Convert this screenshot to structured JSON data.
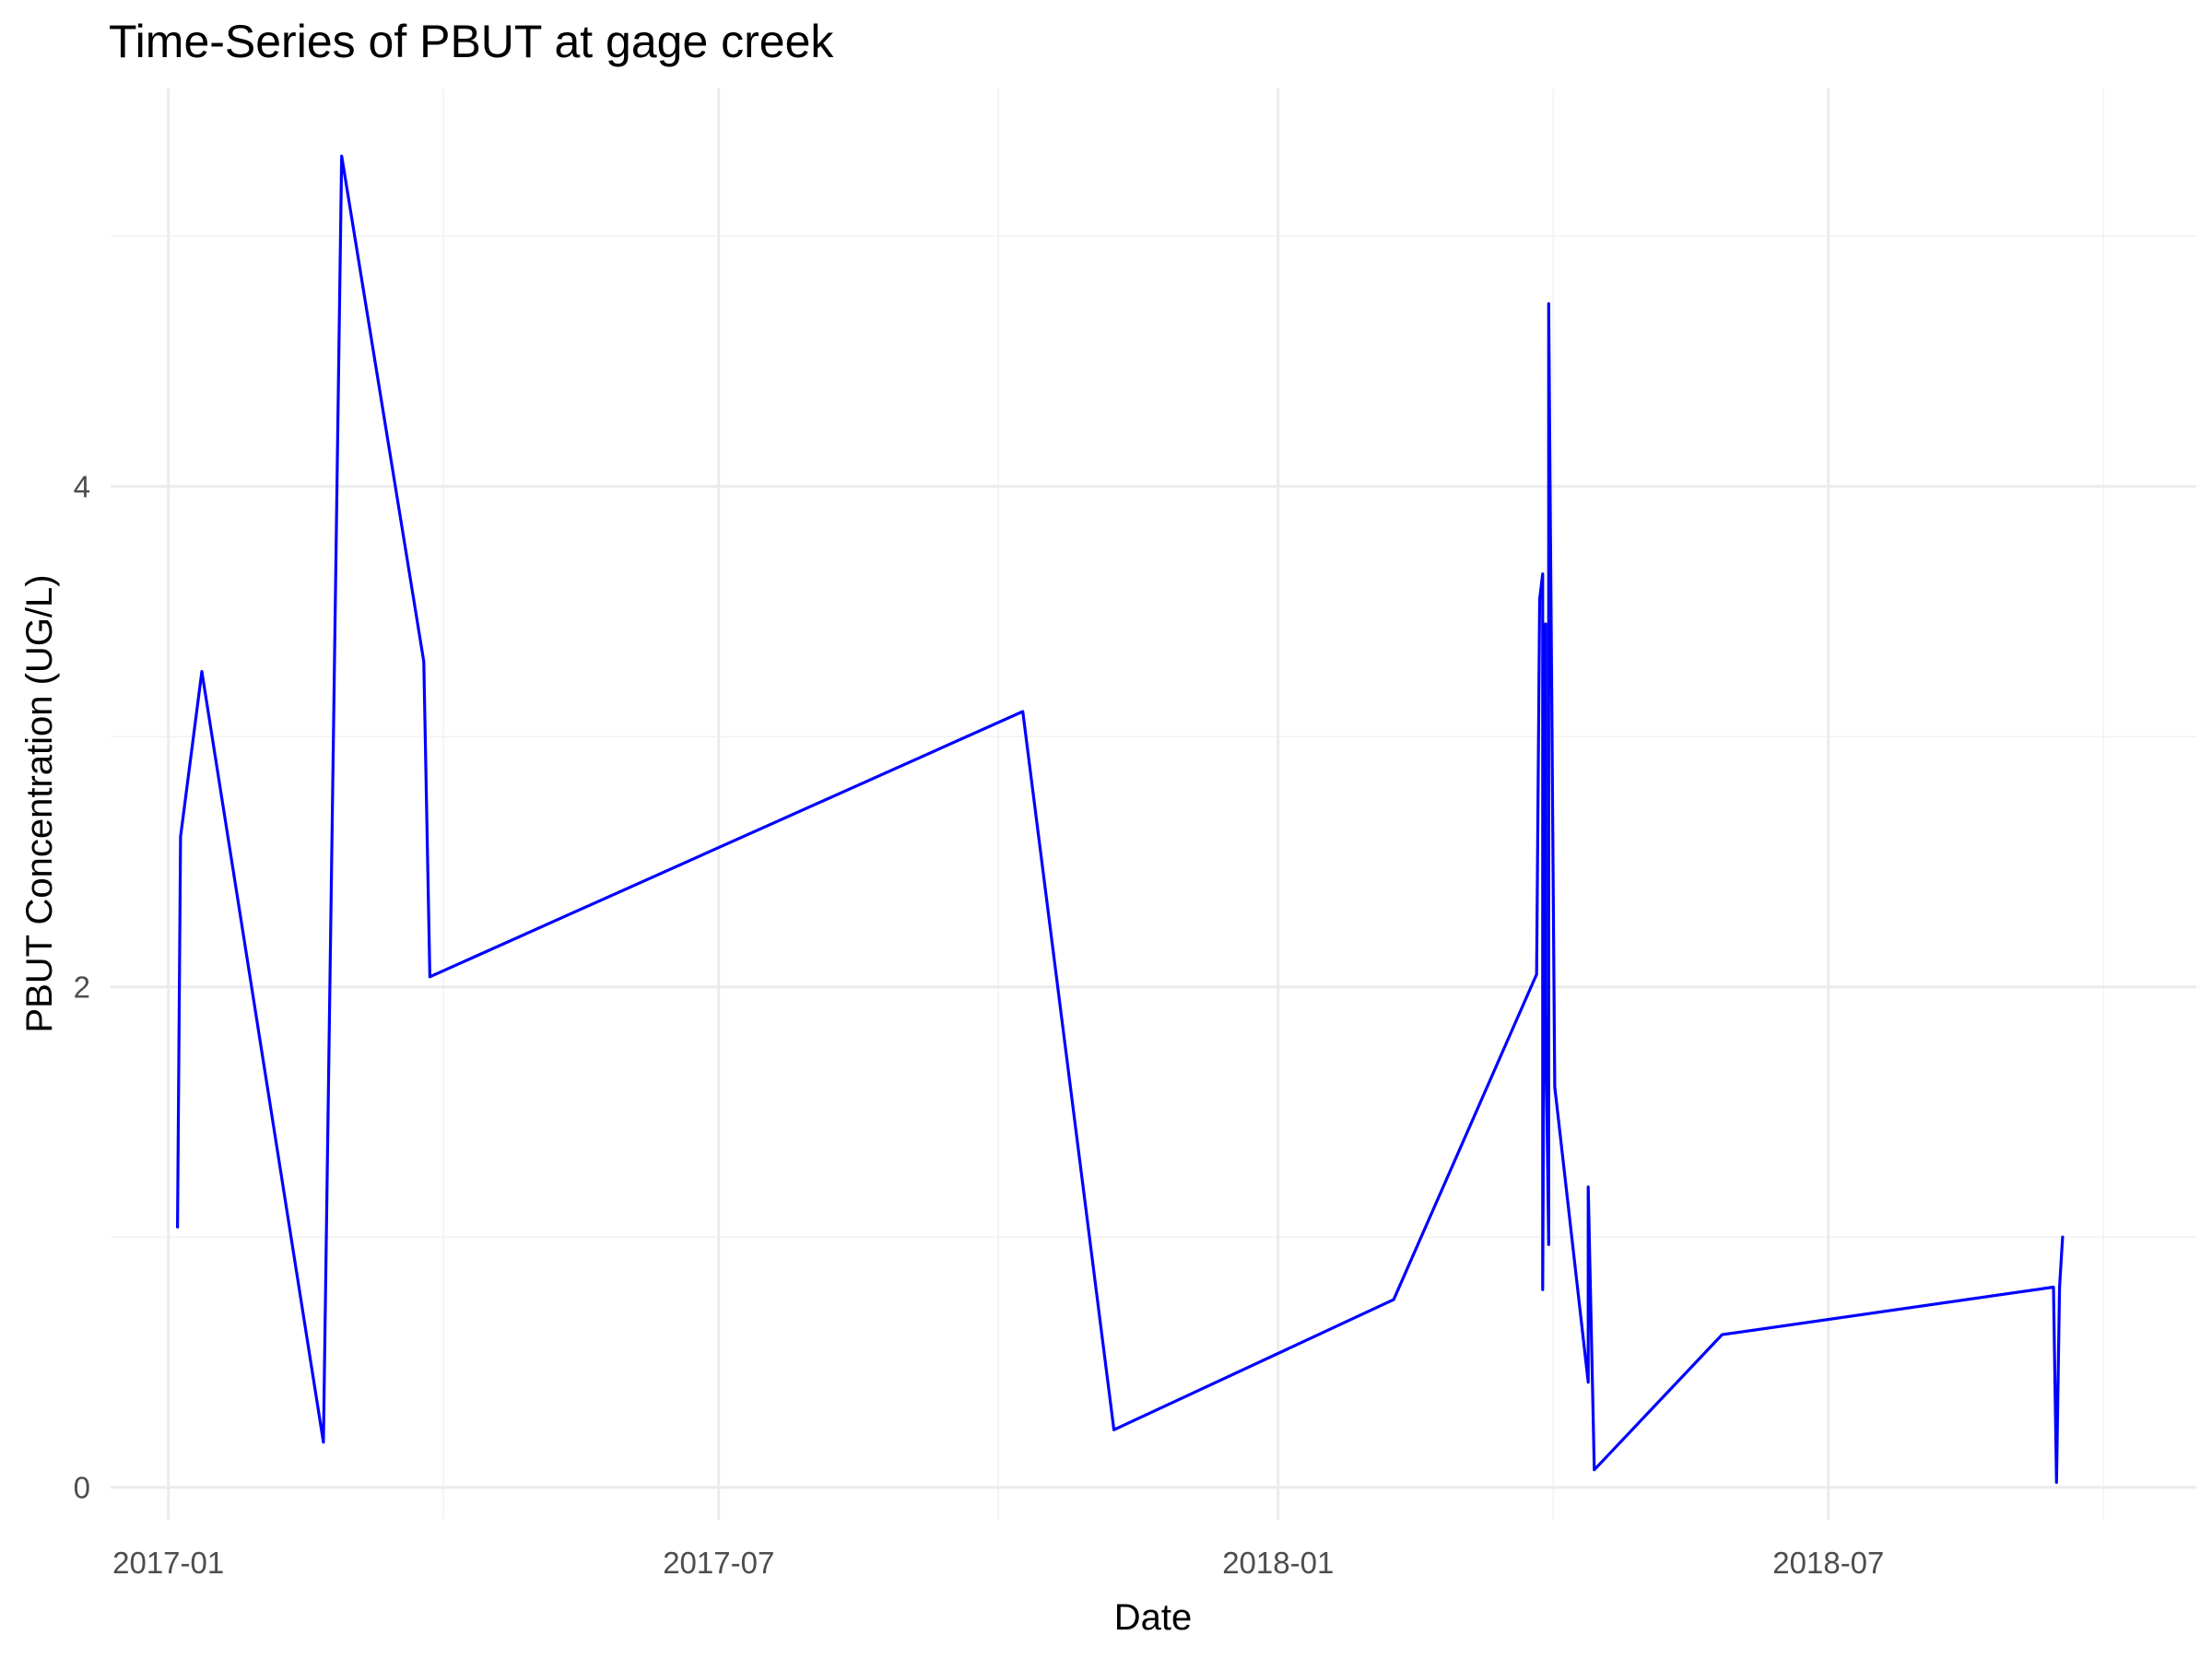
{
  "chart_data": {
    "type": "line",
    "title": "Time-Series of PBUT at gage creek",
    "xlabel": "Date",
    "ylabel": "PBUT Concentration (UG/L)",
    "x_ticks": [
      "2017-01",
      "2017-07",
      "2018-01",
      "2018-07"
    ],
    "y_ticks": [
      "0",
      "2",
      "4"
    ],
    "xlim": [
      "2016-12-13",
      "2018-10-30"
    ],
    "ylim": [
      -0.13,
      5.59
    ],
    "grid": true,
    "legend": "none",
    "series": [
      {
        "color": "#0000ff",
        "points": [
          {
            "x": "2017-01-04",
            "y": 1.04
          },
          {
            "x": "2017-01-05",
            "y": 2.6
          },
          {
            "x": "2017-01-12",
            "y": 3.26
          },
          {
            "x": "2017-02-21",
            "y": 0.18
          },
          {
            "x": "2017-02-27",
            "y": 5.32
          },
          {
            "x": "2017-03-26",
            "y": 3.3
          },
          {
            "x": "2017-03-28",
            "y": 2.04
          },
          {
            "x": "2017-10-09",
            "y": 3.1
          },
          {
            "x": "2017-11-08",
            "y": 0.23
          },
          {
            "x": "2018-02-08",
            "y": 0.75
          },
          {
            "x": "2018-03-27",
            "y": 2.05
          },
          {
            "x": "2018-03-28",
            "y": 3.55
          },
          {
            "x": "2018-03-29",
            "y": 3.65
          },
          {
            "x": "2018-03-29",
            "y": 0.79
          },
          {
            "x": "2018-03-30",
            "y": 3.45
          },
          {
            "x": "2018-03-30",
            "y": 1.9
          },
          {
            "x": "2018-03-31",
            "y": 0.97
          },
          {
            "x": "2018-03-31",
            "y": 4.73
          },
          {
            "x": "2018-04-02",
            "y": 1.6
          },
          {
            "x": "2018-04-13",
            "y": 0.42
          },
          {
            "x": "2018-04-13",
            "y": 1.2
          },
          {
            "x": "2018-04-15",
            "y": 0.07
          },
          {
            "x": "2018-05-27",
            "y": 0.61
          },
          {
            "x": "2018-09-13",
            "y": 0.8
          },
          {
            "x": "2018-09-14",
            "y": 0.02
          },
          {
            "x": "2018-09-15",
            "y": 0.8
          },
          {
            "x": "2018-09-16",
            "y": 1.0
          }
        ]
      }
    ]
  }
}
